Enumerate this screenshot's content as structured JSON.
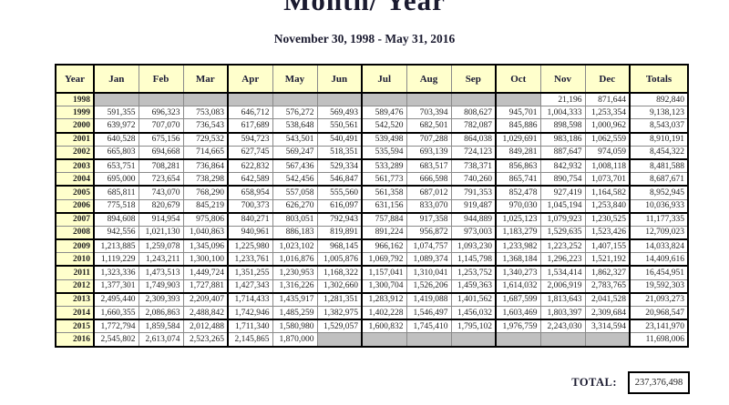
{
  "title": "Month/ Year",
  "subtitle": "November 30, 1998 - May 31, 2016",
  "table": {
    "columns": [
      "Year",
      "Jan",
      "Feb",
      "Mar",
      "Apr",
      "May",
      "Jun",
      "Jul",
      "Aug",
      "Sep",
      "Oct",
      "Nov",
      "Dec",
      "Totals"
    ],
    "rows": [
      {
        "year": "1998",
        "values": [
          "",
          "",
          "",
          "",
          "",
          "",
          "",
          "",
          "",
          "",
          "21,196",
          "871,644"
        ],
        "total": "892,840"
      },
      {
        "year": "1999",
        "values": [
          "591,355",
          "696,323",
          "753,083",
          "646,712",
          "576,272",
          "569,493",
          "589,476",
          "703,394",
          "808,627",
          "945,701",
          "1,004,333",
          "1,253,354"
        ],
        "total": "9,138,123"
      },
      {
        "year": "2000",
        "values": [
          "639,972",
          "707,070",
          "736,543",
          "617,689",
          "538,648",
          "550,561",
          "542,520",
          "682,501",
          "782,087",
          "845,886",
          "898,598",
          "1,000,962"
        ],
        "total": "8,543,037"
      },
      {
        "year": "2001",
        "values": [
          "640,528",
          "675,156",
          "729,532",
          "594,723",
          "543,501",
          "540,491",
          "539,498",
          "707,288",
          "864,038",
          "1,029,691",
          "983,186",
          "1,062,559"
        ],
        "total": "8,910,191"
      },
      {
        "year": "2002",
        "values": [
          "665,803",
          "694,668",
          "714,665",
          "627,745",
          "569,247",
          "518,351",
          "535,594",
          "693,139",
          "724,123",
          "849,281",
          "887,647",
          "974,059"
        ],
        "total": "8,454,322"
      },
      {
        "year": "2003",
        "values": [
          "653,751",
          "708,281",
          "736,864",
          "622,832",
          "567,436",
          "529,334",
          "533,289",
          "683,517",
          "738,371",
          "856,863",
          "842,932",
          "1,008,118"
        ],
        "total": "8,481,588"
      },
      {
        "year": "2004",
        "values": [
          "695,000",
          "723,654",
          "738,298",
          "642,589",
          "542,456",
          "546,847",
          "561,773",
          "666,598",
          "740,260",
          "865,741",
          "890,754",
          "1,073,701"
        ],
        "total": "8,687,671"
      },
      {
        "year": "2005",
        "values": [
          "685,811",
          "743,070",
          "768,290",
          "658,954",
          "557,058",
          "555,560",
          "561,358",
          "687,012",
          "791,353",
          "852,478",
          "927,419",
          "1,164,582"
        ],
        "total": "8,952,945"
      },
      {
        "year": "2006",
        "values": [
          "775,518",
          "820,679",
          "845,219",
          "700,373",
          "626,270",
          "616,097",
          "631,156",
          "833,070",
          "919,487",
          "970,030",
          "1,045,194",
          "1,253,840"
        ],
        "total": "10,036,933"
      },
      {
        "year": "2007",
        "values": [
          "894,608",
          "914,954",
          "975,806",
          "840,271",
          "803,051",
          "792,943",
          "757,884",
          "917,358",
          "944,889",
          "1,025,123",
          "1,079,923",
          "1,230,525"
        ],
        "total": "11,177,335"
      },
      {
        "year": "2008",
        "values": [
          "942,556",
          "1,021,130",
          "1,040,863",
          "940,961",
          "886,183",
          "819,891",
          "891,224",
          "956,872",
          "973,003",
          "1,183,279",
          "1,529,635",
          "1,523,426"
        ],
        "total": "12,709,023"
      },
      {
        "year": "2009",
        "values": [
          "1,213,885",
          "1,259,078",
          "1,345,096",
          "1,225,980",
          "1,023,102",
          "968,145",
          "966,162",
          "1,074,757",
          "1,093,230",
          "1,233,982",
          "1,223,252",
          "1,407,155"
        ],
        "total": "14,033,824"
      },
      {
        "year": "2010",
        "values": [
          "1,119,229",
          "1,243,211",
          "1,300,100",
          "1,233,761",
          "1,016,876",
          "1,005,876",
          "1,069,792",
          "1,089,374",
          "1,145,798",
          "1,368,184",
          "1,296,223",
          "1,521,192"
        ],
        "total": "14,409,616"
      },
      {
        "year": "2011",
        "values": [
          "1,323,336",
          "1,473,513",
          "1,449,724",
          "1,351,255",
          "1,230,953",
          "1,168,322",
          "1,157,041",
          "1,310,041",
          "1,253,752",
          "1,340,273",
          "1,534,414",
          "1,862,327"
        ],
        "total": "16,454,951"
      },
      {
        "year": "2012",
        "values": [
          "1,377,301",
          "1,749,903",
          "1,727,881",
          "1,427,343",
          "1,316,226",
          "1,302,660",
          "1,300,704",
          "1,526,206",
          "1,459,363",
          "1,614,032",
          "2,006,919",
          "2,783,765"
        ],
        "total": "19,592,303"
      },
      {
        "year": "2013",
        "values": [
          "2,495,440",
          "2,309,393",
          "2,209,407",
          "1,714,433",
          "1,435,917",
          "1,281,351",
          "1,283,912",
          "1,419,088",
          "1,401,562",
          "1,687,599",
          "1,813,643",
          "2,041,528"
        ],
        "total": "21,093,273"
      },
      {
        "year": "2014",
        "values": [
          "1,660,355",
          "2,086,863",
          "2,488,842",
          "1,742,946",
          "1,485,259",
          "1,382,975",
          "1,402,228",
          "1,546,497",
          "1,456,032",
          "1,603,469",
          "1,803,397",
          "2,309,684"
        ],
        "total": "20,968,547"
      },
      {
        "year": "2015",
        "values": [
          "1,772,794",
          "1,859,584",
          "2,012,488",
          "1,711,340",
          "1,580,980",
          "1,529,057",
          "1,600,832",
          "1,745,410",
          "1,795,102",
          "1,976,759",
          "2,243,030",
          "3,314,594"
        ],
        "total": "23,141,970"
      },
      {
        "year": "2016",
        "values": [
          "2,545,802",
          "2,613,074",
          "2,523,265",
          "2,145,865",
          "1,870,000",
          "",
          "",
          "",
          "",
          "",
          "",
          ""
        ],
        "total": "11,698,006"
      }
    ],
    "group_end_years": [
      "2000",
      "2002",
      "2004",
      "2006",
      "2008",
      "2010",
      "2012",
      "2014"
    ]
  },
  "footer": {
    "label": "TOTAL:",
    "value": "237,376,498"
  },
  "colors": {
    "header_bg": "#FFFFCC",
    "empty_cell_bg": "#C0C0C0",
    "border": "#000000",
    "text": "#222222"
  }
}
